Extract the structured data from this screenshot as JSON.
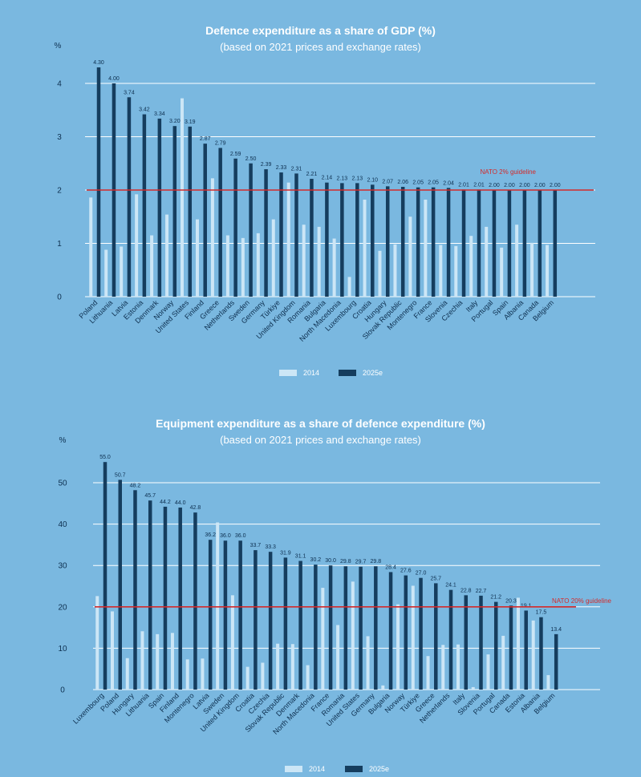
{
  "colors": {
    "background": "#7ab8e0",
    "bar_2014": "#cce6f6",
    "bar_2025": "#153d5e",
    "grid": "#ffffff",
    "guideline": "#d42a2a",
    "text": "#0d2f4f"
  },
  "chart_data": [
    {
      "type": "bar",
      "title": "Defence expenditure as a share of GDP (%)",
      "subtitle": "(based on 2021 prices and exchange rates)",
      "ylabel": "%",
      "ylim": [
        0,
        4.5
      ],
      "yticks": [
        0,
        1,
        2,
        3,
        4
      ],
      "grid": true,
      "legend_position": "bottom",
      "guideline": {
        "value": 2,
        "label": "NATO 2% guideline"
      },
      "categories": [
        "Poland",
        "Lithuania",
        "Latvia",
        "Estonia",
        "Denmark",
        "Norway",
        "United States",
        "Finland",
        "Greece",
        "Netherlands",
        "Sweden",
        "Germany",
        "Türkiye",
        "United Kingdom",
        "Romania",
        "Bulgaria",
        "North Macedonia",
        "Luxembourg",
        "Croatia",
        "Hungary",
        "Slovak Republic",
        "Montenegro",
        "France",
        "Slovenia",
        "Czechia",
        "Italy",
        "Portugal",
        "Spain",
        "Albania",
        "Canada",
        "Belgium"
      ],
      "series": [
        {
          "name": "2014",
          "values": [
            1.86,
            0.88,
            0.94,
            1.92,
            1.15,
            1.54,
            3.72,
            1.45,
            2.22,
            1.15,
            1.1,
            1.19,
            1.45,
            2.14,
            1.35,
            1.31,
            1.09,
            0.37,
            1.82,
            0.86,
            0.98,
            1.5,
            1.82,
            0.97,
            0.95,
            1.14,
            1.31,
            0.92,
            1.35,
            1.01,
            0.97
          ]
        },
        {
          "name": "2025e",
          "values": [
            4.3,
            4.0,
            3.74,
            3.42,
            3.34,
            3.2,
            3.19,
            2.87,
            2.79,
            2.59,
            2.5,
            2.39,
            2.33,
            2.31,
            2.21,
            2.14,
            2.13,
            2.13,
            2.1,
            2.07,
            2.06,
            2.05,
            2.05,
            2.04,
            2.01,
            2.01,
            2.0,
            2.0,
            2.0,
            2.0,
            2.0
          ]
        }
      ],
      "value_labels": [
        "4.30",
        "4.00",
        "3.74",
        "3.42",
        "3.34",
        "3.20",
        "3.19",
        "2.87",
        "2.79",
        "2.59",
        "2.50",
        "2.39",
        "2.33",
        "2.31",
        "2.21",
        "2.14",
        "2.13",
        "2.13",
        "2.10",
        "2.07",
        "2.06",
        "2.05",
        "2.05",
        "2.04",
        "2.01",
        "2.01",
        "2.00",
        "2.00",
        "2.00",
        "2.00",
        "2.00"
      ]
    },
    {
      "type": "bar",
      "title": "Equipment expenditure as a share of defence expenditure (%)",
      "subtitle": "(based on 2021 prices and exchange rates)",
      "ylabel": "%",
      "ylim": [
        0,
        58
      ],
      "yticks": [
        0,
        10,
        20,
        30,
        40,
        50
      ],
      "grid": true,
      "legend_position": "bottom",
      "guideline": {
        "value": 20,
        "label": "NATO 20% guideline"
      },
      "categories": [
        "Luxembourg",
        "Poland",
        "Hungary",
        "Lithuania",
        "Spain",
        "Finland",
        "Montenegro",
        "Latvia",
        "Sweden",
        "United Kingdom",
        "Croatia",
        "Czechia",
        "Slovak Republic",
        "Denmark",
        "North Macedonia",
        "France",
        "Romania",
        "United States",
        "Germany",
        "Bulgaria",
        "Norway",
        "Türkiye",
        "Greece",
        "Netherlands",
        "Italy",
        "Slovenia",
        "Portugal",
        "Canada",
        "Estonia",
        "Albania",
        "Belgium"
      ],
      "series": [
        {
          "name": "2014",
          "values": [
            22.6,
            18.9,
            7.6,
            14.1,
            13.4,
            13.7,
            7.3,
            7.5,
            40.4,
            22.8,
            5.5,
            6.5,
            11.1,
            11.0,
            5.9,
            24.6,
            15.6,
            26.1,
            12.9,
            1.0,
            20.6,
            25.1,
            8.1,
            10.8,
            10.9,
            0.6,
            8.5,
            13.0,
            22.2,
            16.7,
            3.5
          ]
        },
        {
          "name": "2025e",
          "values": [
            55.0,
            50.7,
            48.2,
            45.7,
            44.2,
            44.0,
            42.8,
            36.2,
            36.0,
            36.0,
            33.7,
            33.3,
            31.9,
            31.1,
            30.2,
            30.0,
            29.8,
            29.7,
            29.8,
            28.4,
            27.6,
            27.0,
            25.7,
            24.1,
            22.8,
            22.7,
            21.2,
            20.3,
            19.1,
            17.5,
            13.4
          ]
        }
      ],
      "value_labels": [
        "55.0",
        "50.7",
        "48.2",
        "45.7",
        "44.2",
        "44.0",
        "42.8",
        "36.2",
        "36.0",
        "36.0",
        "33.7",
        "33.3",
        "31.9",
        "31.1",
        "30.2",
        "30.0",
        "29.8",
        "29.7",
        "29.8",
        "28.4",
        "27.6",
        "27.0",
        "25.7",
        "24.1",
        "22.8",
        "22.7",
        "21.2",
        "20.3",
        "19.1",
        "17.5",
        "13.4"
      ]
    }
  ]
}
